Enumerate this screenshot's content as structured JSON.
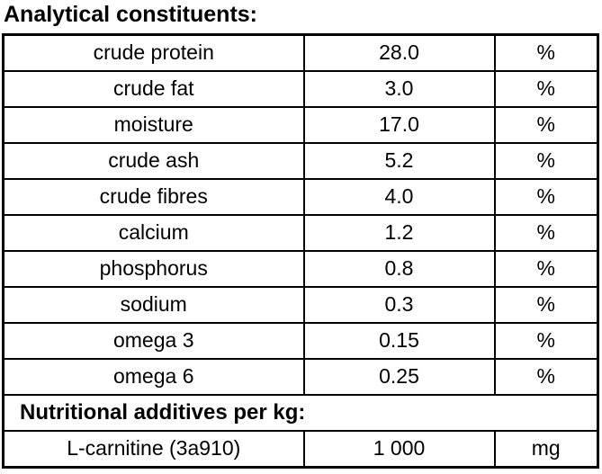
{
  "title": "Analytical constituents:",
  "table": {
    "constituents": [
      {
        "name": "crude protein",
        "value": "28.0",
        "unit": "%"
      },
      {
        "name": "crude fat",
        "value": "3.0",
        "unit": "%"
      },
      {
        "name": "moisture",
        "value": "17.0",
        "unit": "%"
      },
      {
        "name": "crude ash",
        "value": "5.2",
        "unit": "%"
      },
      {
        "name": "crude fibres",
        "value": "4.0",
        "unit": "%"
      },
      {
        "name": "calcium",
        "value": "1.2",
        "unit": "%"
      },
      {
        "name": "phosphorus",
        "value": "0.8",
        "unit": "%"
      },
      {
        "name": "sodium",
        "value": "0.3",
        "unit": "%"
      },
      {
        "name": "omega 3",
        "value": "0.15",
        "unit": "%"
      },
      {
        "name": "omega 6",
        "value": "0.25",
        "unit": "%"
      }
    ],
    "additives_header": "Nutritional additives per kg:",
    "additives": [
      {
        "name": "L-carnitine (3a910)",
        "value": "1 000",
        "unit": "mg"
      }
    ]
  },
  "colors": {
    "border": "#000000",
    "text": "#000000",
    "background": "#ffffff"
  }
}
